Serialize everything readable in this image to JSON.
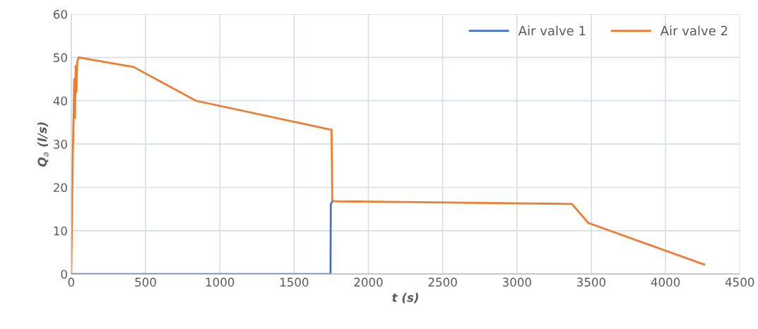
{
  "chart_data": {
    "type": "line",
    "xlabel": "t (s)",
    "ylabel": "Q$_{a}$ (l/s)",
    "xlim": [
      0,
      4500
    ],
    "xticks": [
      0,
      500,
      1000,
      1500,
      2000,
      2500,
      3000,
      3500,
      4000,
      4500
    ],
    "ylim": [
      0,
      60
    ],
    "yticks": [
      0,
      10,
      20,
      30,
      40,
      50,
      60
    ],
    "grid": true,
    "legend": "top right",
    "series": [
      {
        "name": "Air valve 1",
        "color": "#4472c4",
        "x": [
          0,
          1745,
          1747,
          1757
        ],
        "values": [
          0,
          0,
          16,
          16.8
        ]
      },
      {
        "name": "Air valve 2",
        "color": "#ed7d31",
        "x": [
          0,
          10,
          15,
          20,
          25,
          30,
          35,
          40,
          50,
          420,
          840,
          1752,
          1757,
          1770,
          3370,
          3480,
          4260
        ],
        "values": [
          0,
          27,
          35,
          45,
          36,
          48,
          42,
          49,
          50,
          47.8,
          40,
          33.3,
          17,
          16.8,
          16.2,
          11.8,
          2.2
        ]
      }
    ]
  }
}
